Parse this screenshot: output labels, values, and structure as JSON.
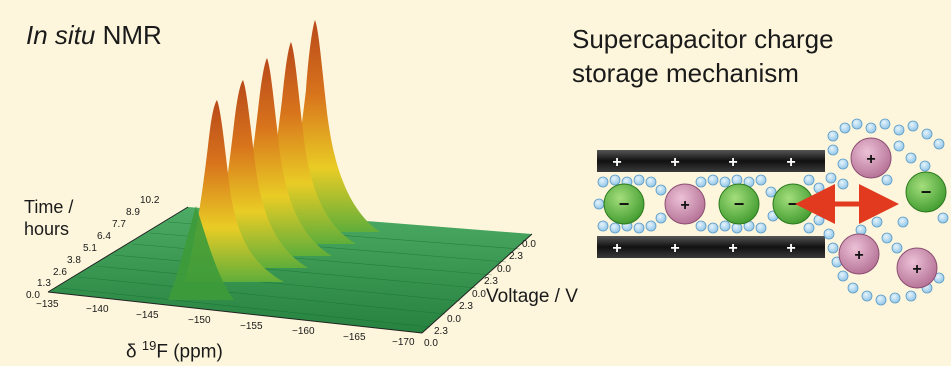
{
  "nmr": {
    "title_italic": "In situ",
    "title_rest": " NMR",
    "time_axis": {
      "label_line1": "Time /",
      "label_line2": "hours",
      "ticks": [
        "0.0",
        "1.3",
        "2.6",
        "3.8",
        "5.1",
        "6.4",
        "7.7",
        "8.9",
        "10.2"
      ]
    },
    "ppm_axis": {
      "label_prefix": "δ ",
      "label_sup": "19",
      "label_rest": "F (ppm)",
      "ticks": [
        "−135",
        "−140",
        "−145",
        "−150",
        "−155",
        "−160",
        "−165",
        "−170"
      ]
    },
    "voltage_axis": {
      "label": "Voltage / V",
      "ticks": [
        "0.0",
        "2.3",
        "0.0",
        "2.3",
        "0.0",
        "2.3",
        "0.0",
        "2.3",
        "0.0"
      ]
    },
    "colors": {
      "base": "#1f8a3c",
      "mid": "#e8d21c",
      "peak": "#c2561a"
    }
  },
  "mechanism": {
    "title_line1": "Supercapacitor charge",
    "title_line2": "storage mechanism",
    "plus": "+",
    "minus": "−",
    "colors": {
      "electrode": "#1a1a1a",
      "cation": "#c98aa8",
      "anion": "#5cb04a",
      "solvent": "#a8d2ee",
      "arrow": "#e23a1e"
    }
  }
}
